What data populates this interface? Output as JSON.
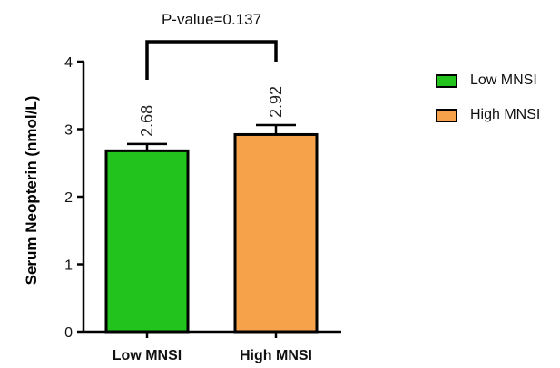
{
  "chart_data": {
    "type": "bar",
    "categories": [
      "Low MNSI",
      "High MNSI"
    ],
    "values": [
      2.68,
      2.92
    ],
    "errors": [
      0.1,
      0.14
    ],
    "data_labels": [
      "2.68",
      "2.92"
    ],
    "colors": [
      "#22c31c",
      "#f5a24a"
    ],
    "ylabel": "Serum Neopterin  (nmol/L)",
    "xlabel": "",
    "ylim": [
      0,
      4
    ],
    "yticks": [
      "0",
      "1",
      "2",
      "3",
      "4"
    ],
    "grid": false,
    "legend": {
      "placement": "right",
      "entries": [
        {
          "label": "Low MNSI",
          "color": "#22c31c"
        },
        {
          "label": "High MNSI",
          "color": "#f5a24a"
        }
      ]
    },
    "annotation": {
      "text": "P-value=0.137",
      "between": [
        0,
        1
      ]
    }
  }
}
